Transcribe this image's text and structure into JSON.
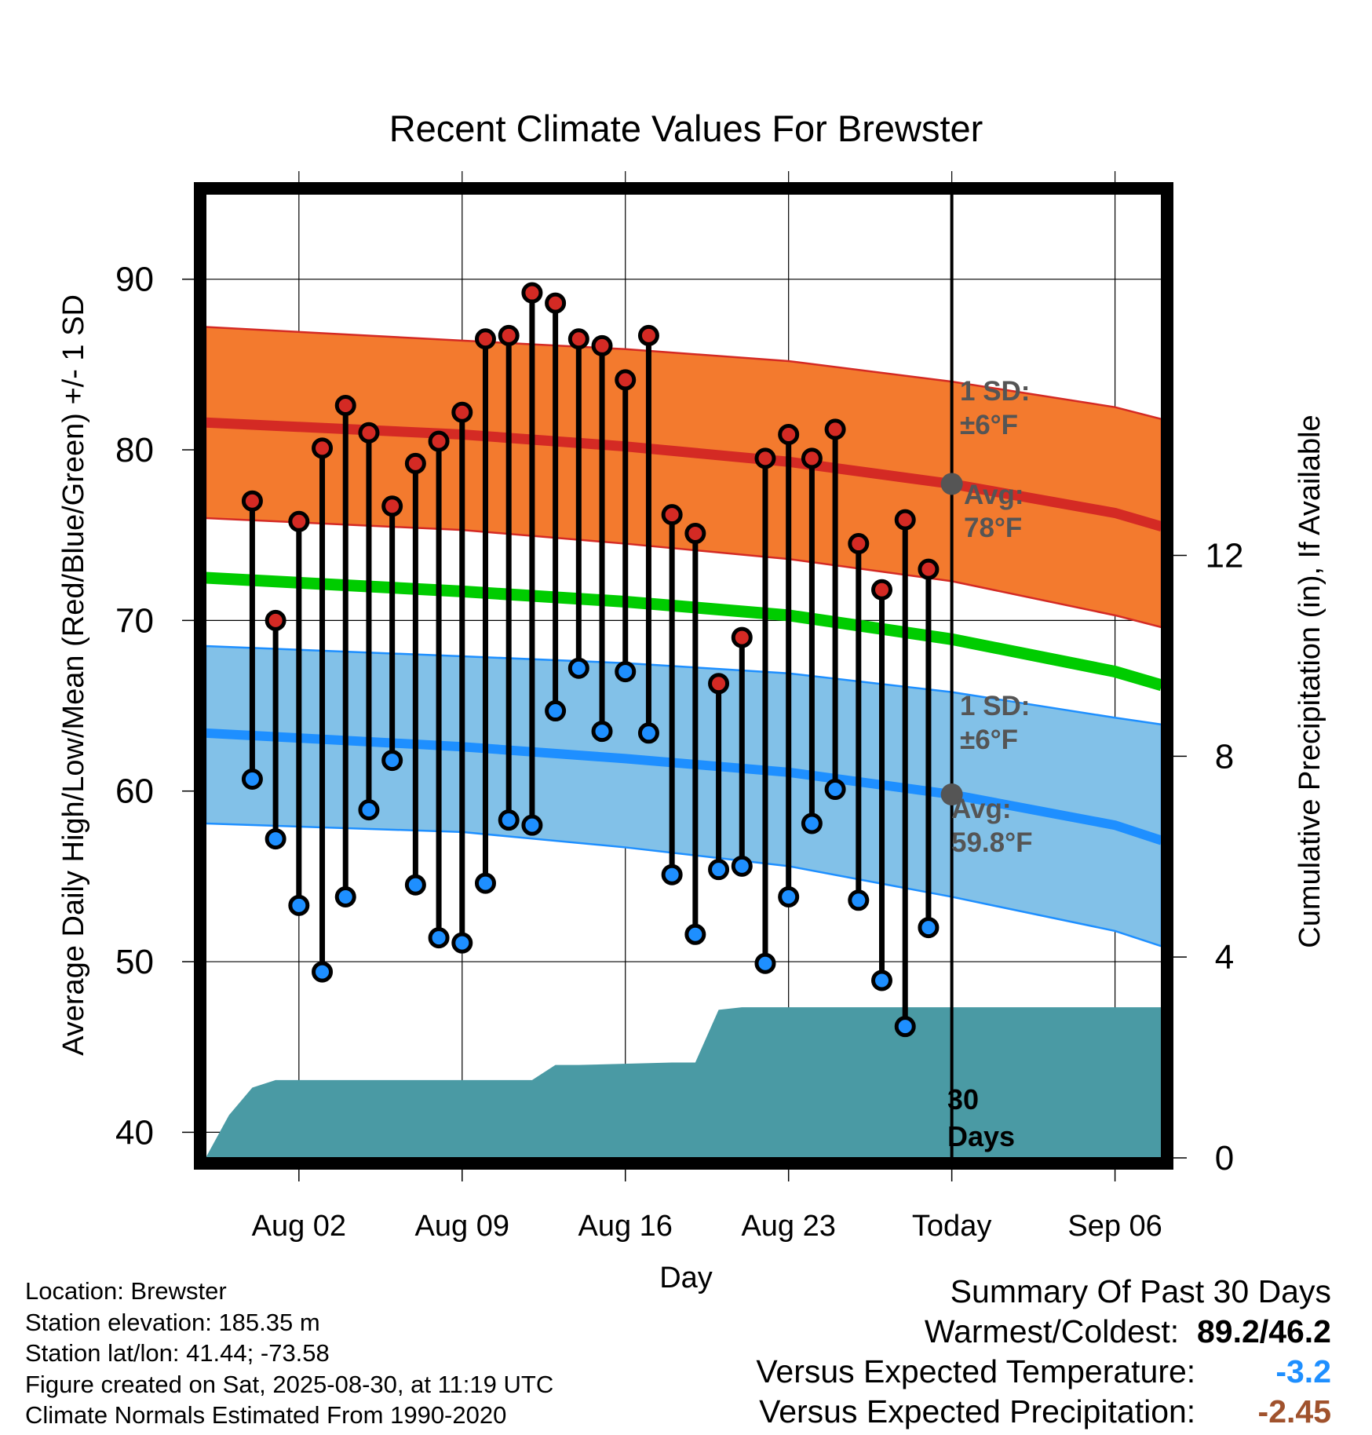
{
  "chart_data": {
    "type": "line",
    "title": "Recent Climate Values For Brewster",
    "xlabel": "Day",
    "ylabel": "Average Daily High/Low/Mean (Red/Blue/Green) +/- 1 SD",
    "y2label": "Cumulative Precipitation (in), If Available",
    "ylim": [
      38.5,
      95
    ],
    "y2lim": [
      0,
      19.2
    ],
    "xlim": [
      "2025-07-29",
      "2025-09-08"
    ],
    "grid": true,
    "y_ticks": [
      40,
      50,
      60,
      70,
      80,
      90
    ],
    "y2_ticks": [
      0,
      4,
      8,
      12
    ],
    "x_ticks": [
      {
        "date": "2025-08-02",
        "label": "Aug 02"
      },
      {
        "date": "2025-08-09",
        "label": "Aug 09"
      },
      {
        "date": "2025-08-16",
        "label": "Aug 16"
      },
      {
        "date": "2025-08-23",
        "label": "Aug 23"
      },
      {
        "date": "2025-08-30",
        "label": "Today"
      },
      {
        "date": "2025-09-06",
        "label": "Sep 06"
      }
    ],
    "today": "2025-08-30",
    "observed": {
      "dates": [
        "2025-07-31",
        "2025-08-01",
        "2025-08-02",
        "2025-08-03",
        "2025-08-04",
        "2025-08-05",
        "2025-08-06",
        "2025-08-07",
        "2025-08-08",
        "2025-08-09",
        "2025-08-10",
        "2025-08-11",
        "2025-08-12",
        "2025-08-13",
        "2025-08-14",
        "2025-08-15",
        "2025-08-16",
        "2025-08-17",
        "2025-08-18",
        "2025-08-19",
        "2025-08-20",
        "2025-08-21",
        "2025-08-22",
        "2025-08-23",
        "2025-08-24",
        "2025-08-25",
        "2025-08-26",
        "2025-08-27",
        "2025-08-28",
        "2025-08-29"
      ],
      "high": [
        77,
        70,
        75.8,
        80.1,
        82.6,
        81,
        76.7,
        79.2,
        80.5,
        82.2,
        86.5,
        86.7,
        89.2,
        88.6,
        86.5,
        86.1,
        84.1,
        86.7,
        76.2,
        75.1,
        66.3,
        69,
        79.5,
        80.9,
        79.5,
        81.2,
        74.5,
        71.8,
        75.9,
        73
      ],
      "low": [
        60.7,
        57.2,
        53.3,
        49.4,
        53.8,
        58.9,
        61.8,
        54.5,
        51.4,
        51.1,
        54.6,
        58.3,
        58,
        64.7,
        67.2,
        63.5,
        67,
        63.4,
        55.1,
        51.6,
        55.4,
        55.6,
        49.9,
        53.8,
        58.1,
        60.1,
        53.6,
        48.9,
        46.2,
        52
      ]
    },
    "normals": {
      "dates": [
        "2025-07-29",
        "2025-08-09",
        "2025-08-16",
        "2025-08-23",
        "2025-08-30",
        "2025-09-06",
        "2025-09-08"
      ],
      "high_mean": [
        81.6,
        80.9,
        80.2,
        79.3,
        78,
        76.3,
        75.5
      ],
      "high_upper": [
        87.2,
        86.4,
        85.9,
        85.2,
        84,
        82.5,
        81.8
      ],
      "high_lower": [
        76,
        75.3,
        74.5,
        73.6,
        72.3,
        70.3,
        69.6
      ],
      "mean": [
        72.5,
        71.7,
        71.1,
        70.3,
        68.9,
        67,
        66.2
      ],
      "low_mean": [
        63.4,
        62.6,
        61.9,
        61.1,
        59.8,
        58,
        57.1
      ],
      "low_upper": [
        68.5,
        67.9,
        67.5,
        66.9,
        65.8,
        64.3,
        63.9
      ],
      "low_lower": [
        58.1,
        57.6,
        56.7,
        55.6,
        53.8,
        51.8,
        50.9
      ]
    },
    "precipitation": {
      "dates": [
        "2025-07-29",
        "2025-07-30",
        "2025-07-31",
        "2025-08-01",
        "2025-08-02",
        "2025-08-03",
        "2025-08-12",
        "2025-08-13",
        "2025-08-14",
        "2025-08-18",
        "2025-08-19",
        "2025-08-20",
        "2025-08-21",
        "2025-08-30",
        "2025-09-08"
      ],
      "cumulative": [
        0,
        0.85,
        1.4,
        1.55,
        1.55,
        1.55,
        1.55,
        1.85,
        1.85,
        1.9,
        1.9,
        2.95,
        3.0,
        3.0,
        3.0
      ]
    },
    "annotations": {
      "high_sd_label": "1 SD:",
      "high_sd_value": "±6°F",
      "high_avg_label": "Avg:",
      "high_avg_value": "78°F",
      "low_sd_label": "1 SD:",
      "low_sd_value": "±6°F",
      "low_avg_label": "Avg:",
      "low_avg_value": "59.8°F",
      "days_label_1": "30",
      "days_label_2": "Days"
    },
    "colors": {
      "high_band": "#f37a2e",
      "high_line": "#d42a24",
      "low_band": "#82c1e8",
      "low_line": "#1e8fff",
      "mean_line": "#00cc00",
      "precip_fill": "#4a9aa4",
      "high_marker": "#d42a24",
      "low_marker": "#1e8fff",
      "today_marker": "#555555",
      "annotation_text": "#555555"
    }
  },
  "info": {
    "location": "Location: Brewster",
    "elevation": "Station elevation: 185.35 m",
    "latlon": "Station lat/lon: 41.44; -73.58",
    "created": "Figure created on Sat, 2025-08-30, at 11:19 UTC",
    "normals": "Climate Normals Estimated From 1990-2020"
  },
  "summary": {
    "title": "Summary Of Past 30 Days",
    "warm_cold_label": "Warmest/Coldest:",
    "warm_cold_value": "89.2/46.2",
    "temp_label": "Versus Expected Temperature:",
    "temp_value": "-3.2",
    "temp_color": "#1e8fff",
    "precip_label": "Versus Expected Precipitation:",
    "precip_value": "-2.45",
    "precip_color": "#a0522d"
  }
}
